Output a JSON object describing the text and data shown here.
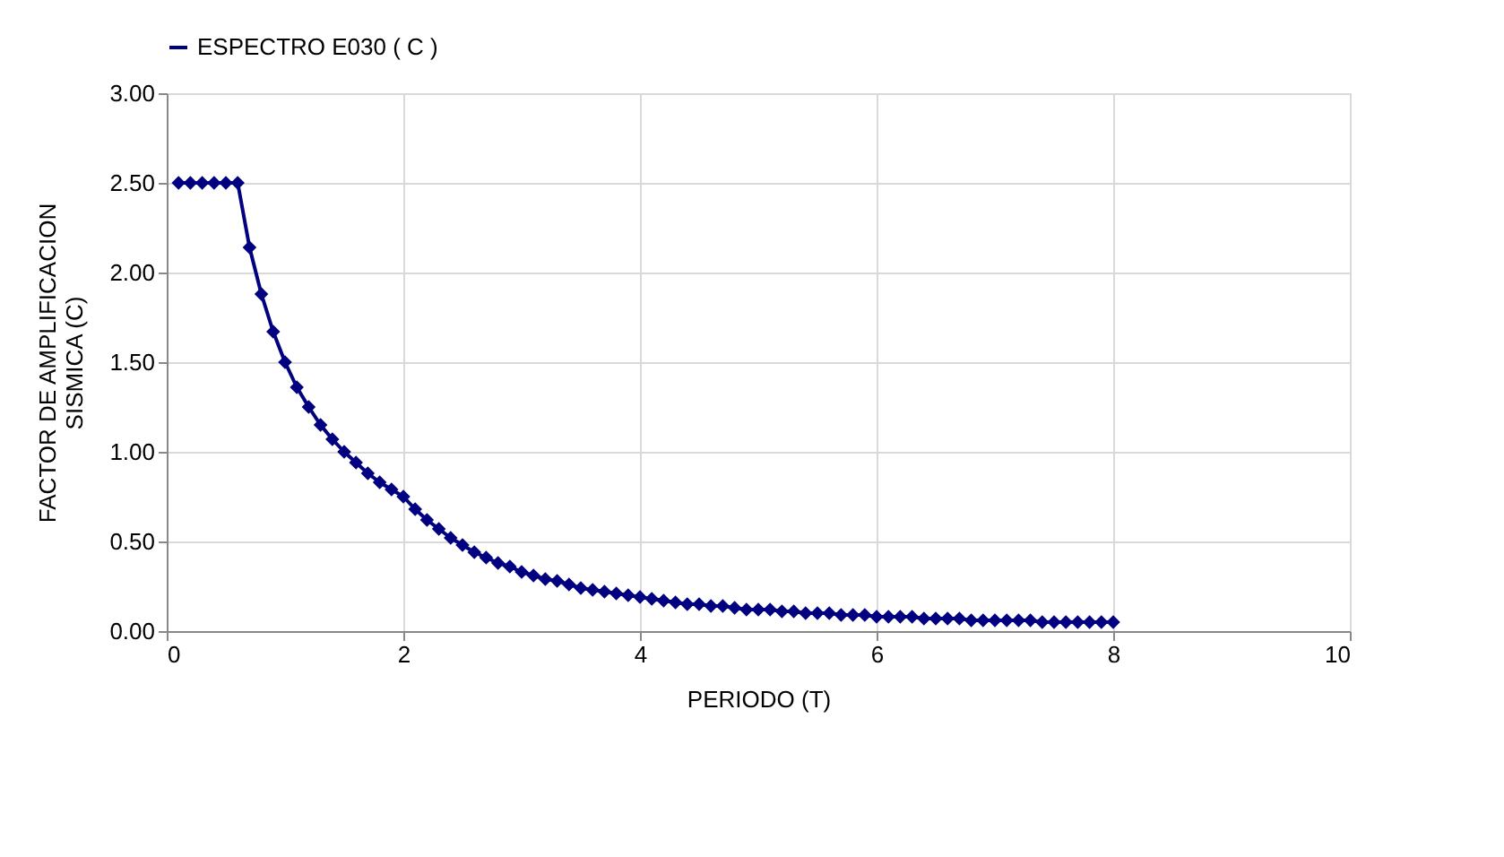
{
  "chart_data": {
    "type": "line",
    "xlabel": "PERIODO  (T)",
    "ylabel": "FACTOR  DE AMPLIFICACION\nSISMICA  (C)",
    "x": [
      0.1,
      0.2,
      0.3,
      0.4,
      0.5,
      0.6,
      0.7,
      0.8,
      0.9,
      1.0,
      1.1,
      1.2,
      1.3,
      1.4,
      1.5,
      1.6,
      1.7,
      1.8,
      1.9,
      2.0,
      2.1,
      2.2,
      2.3,
      2.4,
      2.5,
      2.6,
      2.7,
      2.8,
      2.9,
      3.0,
      3.1,
      3.2,
      3.3,
      3.4,
      3.5,
      3.6,
      3.7,
      3.8,
      3.9,
      4.0,
      4.1,
      4.2,
      4.3,
      4.4,
      4.5,
      4.6,
      4.7,
      4.8,
      4.9,
      5.0,
      5.1,
      5.2,
      5.3,
      5.4,
      5.5,
      5.6,
      5.7,
      5.8,
      5.9,
      6.0,
      6.1,
      6.2,
      6.3,
      6.4,
      6.5,
      6.6,
      6.7,
      6.8,
      6.9,
      7.0,
      7.1,
      7.2,
      7.3,
      7.4,
      7.5,
      7.6,
      7.7,
      7.8,
      7.9,
      8.0
    ],
    "series": [
      {
        "name": "ESPECTRO E030 ( C )",
        "color": "#000080",
        "values": [
          2.5,
          2.5,
          2.5,
          2.5,
          2.5,
          2.5,
          2.14,
          1.88,
          1.67,
          1.5,
          1.36,
          1.25,
          1.15,
          1.07,
          1.0,
          0.94,
          0.88,
          0.83,
          0.79,
          0.75,
          0.68,
          0.62,
          0.57,
          0.52,
          0.48,
          0.44,
          0.41,
          0.38,
          0.36,
          0.33,
          0.31,
          0.29,
          0.28,
          0.26,
          0.24,
          0.23,
          0.22,
          0.21,
          0.2,
          0.19,
          0.18,
          0.17,
          0.16,
          0.15,
          0.15,
          0.14,
          0.14,
          0.13,
          0.12,
          0.12,
          0.12,
          0.11,
          0.11,
          0.1,
          0.1,
          0.1,
          0.09,
          0.09,
          0.09,
          0.08,
          0.08,
          0.08,
          0.08,
          0.07,
          0.07,
          0.07,
          0.07,
          0.06,
          0.06,
          0.06,
          0.06,
          0.06,
          0.06,
          0.05,
          0.05,
          0.05,
          0.05,
          0.05,
          0.05,
          0.05
        ]
      }
    ],
    "xlim": [
      0,
      10
    ],
    "xticks": [
      0,
      2,
      4,
      6,
      8,
      10
    ],
    "ylim": [
      0,
      3
    ],
    "yticks": [
      {
        "value": 0,
        "label": "0.00"
      },
      {
        "value": 0.5,
        "label": "0.50"
      },
      {
        "value": 1,
        "label": "1.00"
      },
      {
        "value": 1.5,
        "label": "1.50"
      },
      {
        "value": 2,
        "label": "2.00"
      },
      {
        "value": 2.5,
        "label": "2.50"
      },
      {
        "value": 3,
        "label": "3.00"
      }
    ],
    "grid": true,
    "legend": "top",
    "marker": "diamond",
    "line_style": "solid"
  }
}
